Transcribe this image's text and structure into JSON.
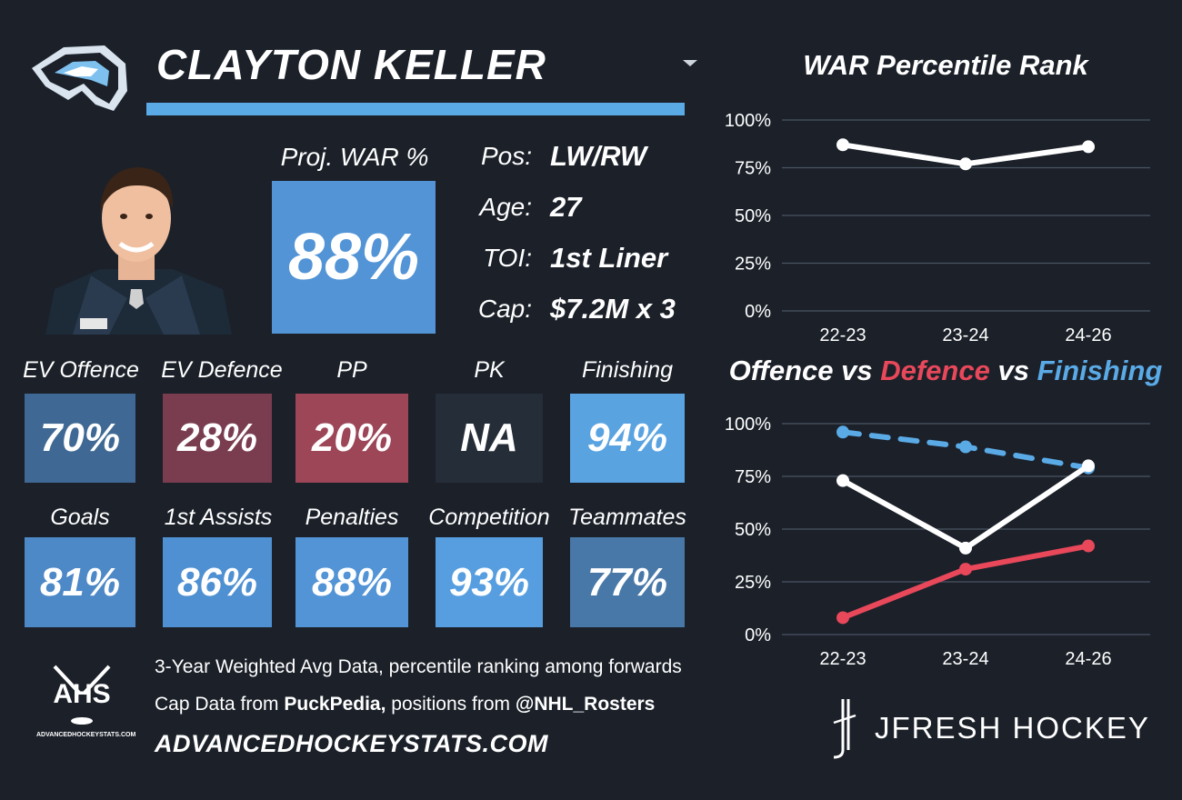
{
  "player": {
    "name": "CLAYTON KELLER",
    "proj_war_label": "Proj. WAR %",
    "proj_war_value": "88%",
    "pos_label": "Pos:",
    "pos_value": "LW/RW",
    "age_label": "Age:",
    "age_value": "27",
    "toi_label": "TOI:",
    "toi_value": "1st Liner",
    "cap_label": "Cap:",
    "cap_value": "$7.2M x 3"
  },
  "colors": {
    "background": "#1b2029",
    "accent_bar": "#5aaae6",
    "offence_line": "#ffffff",
    "defence_line": "#e8485a",
    "finishing_line": "#5aaae6"
  },
  "tiles_row1": [
    {
      "label": "EV Offence",
      "value": "70%",
      "color": "#3f6994"
    },
    {
      "label": "EV Defence",
      "value": "28%",
      "color": "#7a3d4f"
    },
    {
      "label": "PP",
      "value": "20%",
      "color": "#9c4657"
    },
    {
      "label": "PK",
      "value": "NA",
      "color": "#252d38"
    },
    {
      "label": "Finishing",
      "value": "94%",
      "color": "#5aa3e1"
    }
  ],
  "tiles_row2": [
    {
      "label": "Goals",
      "value": "81%",
      "color": "#4d88c7"
    },
    {
      "label": "1st Assists",
      "value": "86%",
      "color": "#4f90d2"
    },
    {
      "label": "Penalties",
      "value": "88%",
      "color": "#5294d6"
    },
    {
      "label": "Competition",
      "value": "93%",
      "color": "#579ee0"
    },
    {
      "label": "Teammates",
      "value": "77%",
      "color": "#4878a8"
    }
  ],
  "footer": {
    "line1": "3-Year Weighted Avg Data, percentile ranking among forwards",
    "line2_prefix": "Cap Data from ",
    "line2_bold1": "PuckPedia,",
    "line2_mid": " positions from ",
    "line2_bold2": "@NHL_Rosters",
    "site": "ADVANCEDHOCKEYSTATS.COM",
    "ahs_logo_text": "AHS",
    "ahs_logo_sub": "ADVANCEDHOCKEYSTATS.COM",
    "brand": "JFRESH HOCKEY"
  },
  "chart_titles": {
    "war_title": "WAR Percentile Rank",
    "ovd_title_offence": "Offence",
    "ovd_title_vs1": " vs ",
    "ovd_title_defence": "Defence",
    "ovd_title_vs2": " vs ",
    "ovd_title_finishing": "Finishing"
  },
  "chart_data": [
    {
      "type": "line",
      "title": "WAR Percentile Rank",
      "categories": [
        "22-23",
        "23-24",
        "24-26"
      ],
      "ylim": [
        0,
        100
      ],
      "yticks": [
        "0%",
        "25%",
        "50%",
        "75%",
        "100%"
      ],
      "grid": true,
      "series": [
        {
          "values": [
            87,
            77,
            86
          ],
          "color": "#ffffff",
          "dashed": false
        }
      ]
    },
    {
      "type": "line",
      "title": "Offence vs Defence vs Finishing",
      "categories": [
        "22-23",
        "23-24",
        "24-26"
      ],
      "ylim": [
        0,
        100
      ],
      "yticks": [
        "0%",
        "25%",
        "50%",
        "75%",
        "100%"
      ],
      "grid": true,
      "series": [
        {
          "name": "Finishing",
          "values": [
            96,
            89,
            79
          ],
          "color": "#5aaae6",
          "dashed": true
        },
        {
          "name": "Offence",
          "values": [
            73,
            41,
            80
          ],
          "color": "#ffffff",
          "dashed": false
        },
        {
          "name": "Defence",
          "values": [
            8,
            31,
            42
          ],
          "color": "#e8485a",
          "dashed": false
        }
      ]
    }
  ]
}
